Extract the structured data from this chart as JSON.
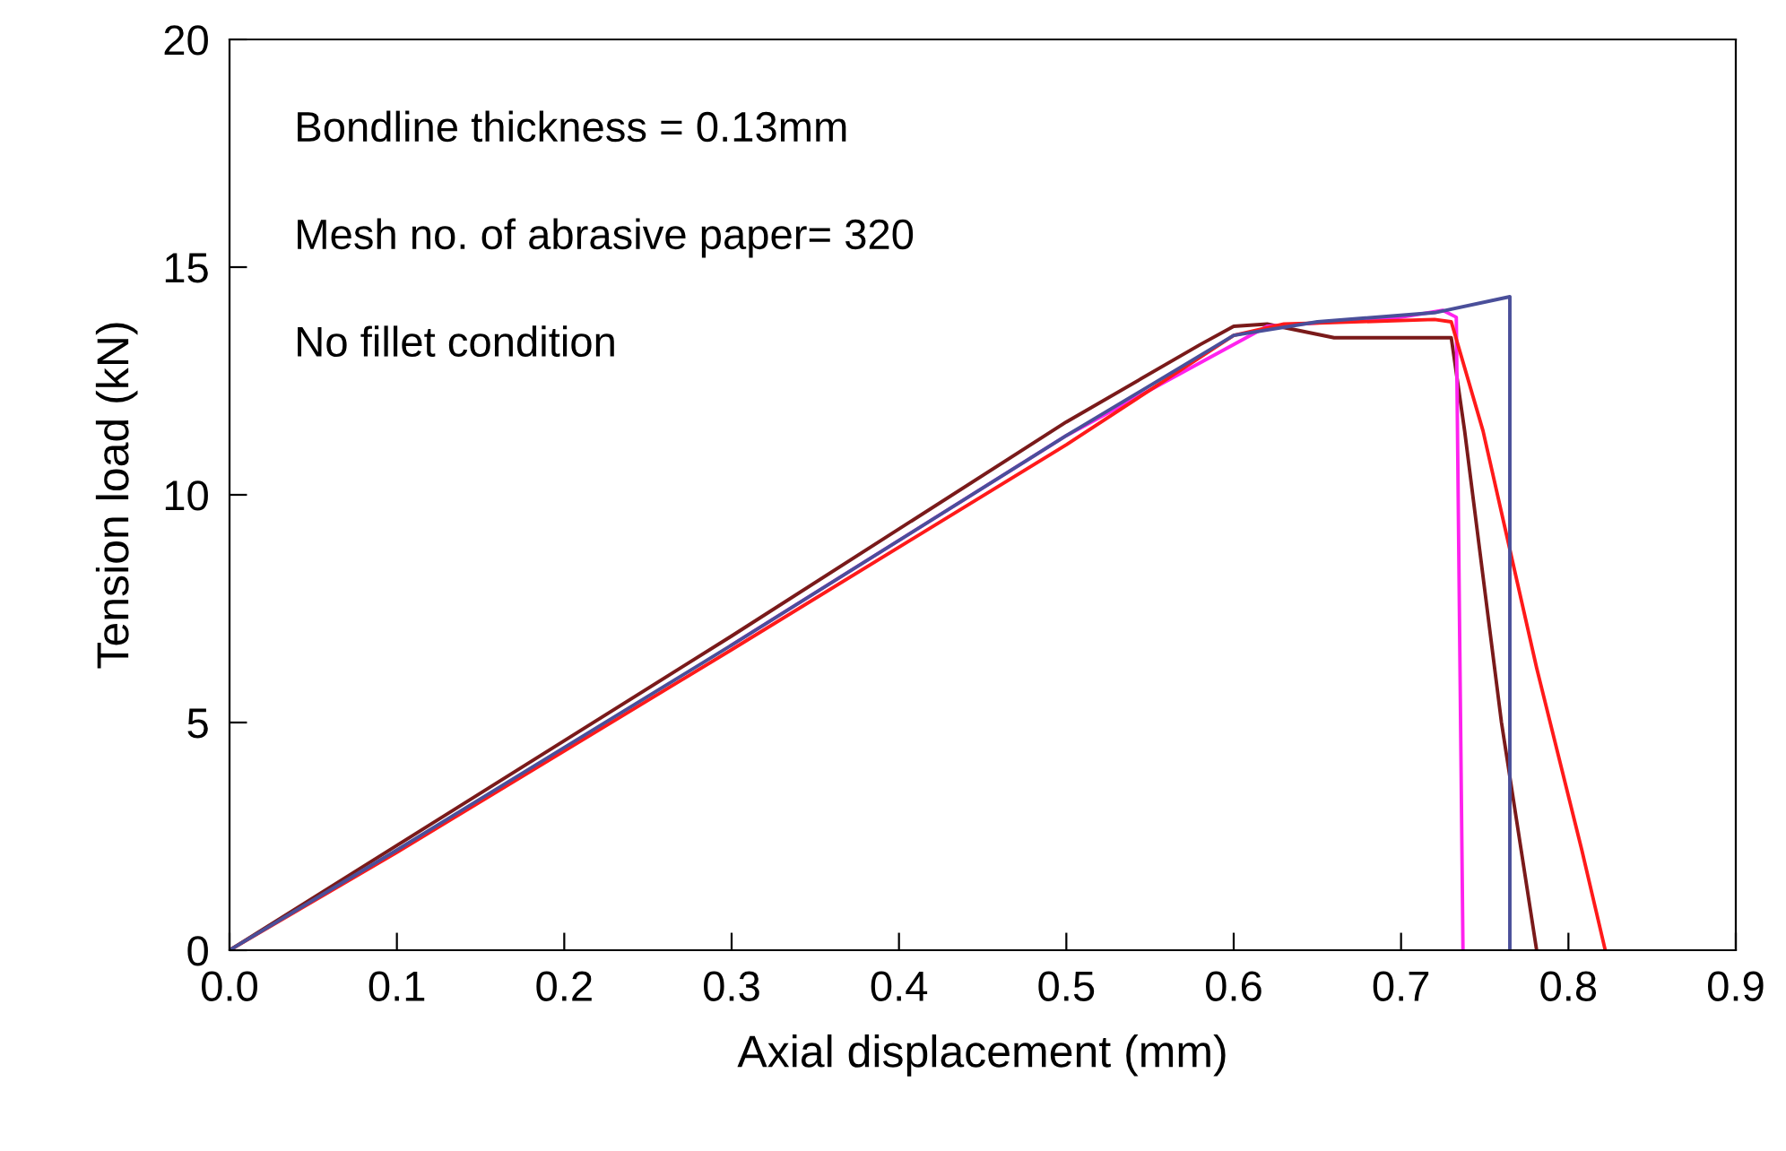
{
  "chart_data": {
    "type": "line",
    "xlabel": "Axial displacement (mm)",
    "ylabel": "Tension load (kN)",
    "xlim": [
      0,
      0.9
    ],
    "ylim": [
      0,
      20
    ],
    "xticks": [
      {
        "value": 0,
        "label": "0.0"
      },
      0.1,
      0.2,
      0.3,
      0.4,
      0.5,
      0.6,
      0.7,
      0.8,
      0.9
    ],
    "yticks": [
      0,
      5,
      10,
      15,
      20
    ],
    "grid": false,
    "marker": "none",
    "line_style": "solid",
    "annotations": [
      "Bondline thickness = 0.13mm",
      "Mesh no. of abrasive paper= 320",
      "No fillet condition"
    ],
    "series": [
      {
        "color": "#7a1a1a",
        "x": [
          0,
          0.1,
          0.3,
          0.5,
          0.58,
          0.6,
          0.62,
          0.66,
          0.73,
          0.738,
          0.76,
          0.781
        ],
        "values": [
          0,
          2.3,
          6.9,
          11.6,
          13.3,
          13.7,
          13.75,
          13.45,
          13.45,
          11.4,
          5,
          0
        ]
      },
      {
        "color": "#ff22ee",
        "x": [
          0.3,
          0.5,
          0.62,
          0.7,
          0.725,
          0.733,
          0.737
        ],
        "values": [
          6.7,
          11.3,
          13.7,
          13.9,
          14.05,
          13.9,
          0
        ]
      },
      {
        "color": "#ff1a1a",
        "x": [
          0,
          0.1,
          0.3,
          0.5,
          0.6,
          0.63,
          0.72,
          0.73,
          0.749,
          0.781,
          0.808,
          0.822
        ],
        "values": [
          0,
          2.15,
          6.6,
          11.1,
          13.5,
          13.75,
          13.85,
          13.8,
          11.4,
          6.2,
          2.2,
          0
        ]
      },
      {
        "color": "#4a4f9a",
        "x": [
          0,
          0.1,
          0.3,
          0.5,
          0.6,
          0.65,
          0.72,
          0.765,
          0.765
        ],
        "values": [
          0,
          2.2,
          6.7,
          11.3,
          13.5,
          13.8,
          14.0,
          14.35,
          0
        ]
      }
    ]
  }
}
